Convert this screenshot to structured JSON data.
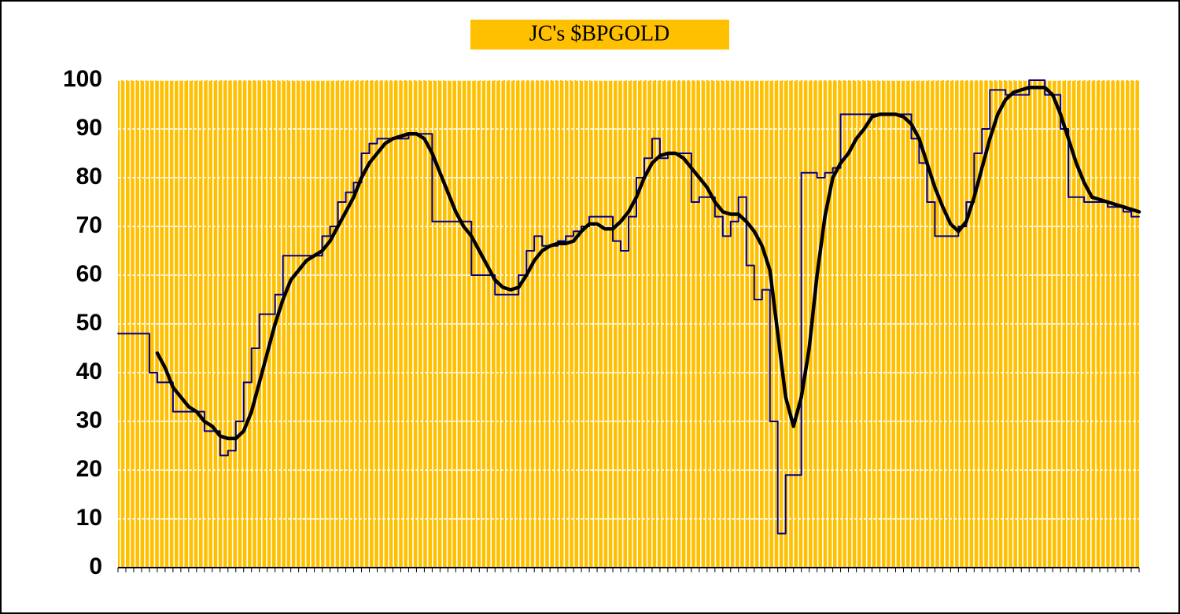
{
  "chart_data": {
    "type": "line",
    "title": "JC's $BPGOLD",
    "categories": [
      null,
      null,
      null,
      null,
      null,
      null,
      null,
      null,
      null,
      null,
      null,
      null,
      null,
      null,
      null,
      null,
      null,
      null,
      null,
      null,
      null,
      null,
      null,
      null,
      null,
      null,
      null,
      null,
      null,
      null,
      null,
      null,
      null,
      null,
      null,
      null,
      null,
      null,
      null,
      null,
      null,
      null,
      null,
      null,
      null,
      null,
      null,
      null,
      null,
      null,
      null,
      null,
      null,
      null,
      null,
      null,
      null,
      null,
      null,
      null,
      null,
      null,
      null,
      null,
      null,
      null,
      null,
      null,
      null,
      null,
      null,
      null,
      null,
      null,
      null,
      null,
      null,
      null,
      null,
      null,
      null,
      null,
      null,
      null,
      null,
      null,
      null,
      null,
      null,
      null,
      null,
      null,
      null,
      null,
      null,
      null,
      null,
      null,
      null,
      null,
      null,
      null,
      null,
      null,
      null,
      null,
      null,
      null,
      null,
      null,
      null,
      null,
      null,
      null,
      null,
      null,
      null,
      null,
      null,
      null,
      null,
      null,
      null,
      null,
      null,
      null,
      null,
      null,
      null,
      null,
      null
    ],
    "series": [
      {
        "color": "#00008b",
        "step": true,
        "values": [
          48,
          48,
          48,
          48,
          40,
          38,
          38,
          32,
          32,
          32,
          32,
          28,
          28,
          23,
          24,
          30,
          38,
          45,
          52,
          52,
          56,
          64,
          64,
          64,
          64,
          64,
          68,
          70,
          75,
          77,
          79,
          85,
          87,
          88,
          88,
          88,
          88,
          89,
          89,
          89,
          71,
          71,
          71,
          71,
          71,
          60,
          60,
          60,
          56,
          56,
          56,
          60,
          65,
          68,
          66,
          66,
          67,
          68,
          69,
          70,
          72,
          72,
          72,
          67,
          65,
          72,
          80,
          84,
          88,
          84,
          85,
          85,
          85,
          75,
          76,
          76,
          72,
          68,
          71,
          76,
          62,
          55,
          57,
          30,
          7,
          19,
          19,
          81,
          81,
          80,
          81,
          82,
          93,
          93,
          93,
          93,
          93,
          93,
          93,
          93,
          93,
          88,
          83,
          75,
          68,
          68,
          68,
          70,
          75,
          85,
          90,
          98,
          98,
          97,
          97,
          97,
          100,
          100,
          97,
          97,
          90,
          76,
          76,
          75,
          75,
          75,
          74,
          74,
          73,
          72,
          72
        ]
      },
      {
        "color": "#000000",
        "values": [
          null,
          null,
          null,
          null,
          null,
          44,
          41,
          37,
          35,
          33,
          32,
          30,
          29,
          27,
          26.5,
          26.5,
          28,
          32,
          38,
          44,
          50,
          55,
          59,
          61,
          63,
          64,
          65,
          67,
          70,
          73,
          76,
          80,
          83,
          85,
          87,
          88,
          88.5,
          89,
          89,
          88,
          85,
          81,
          77,
          73,
          70,
          68,
          65,
          62,
          59,
          57.5,
          57,
          57.5,
          60,
          63,
          65,
          66,
          66.5,
          66.5,
          67,
          69,
          70.5,
          70.5,
          69.5,
          69.5,
          71,
          73,
          76,
          80,
          83,
          84.5,
          85,
          85,
          84,
          82,
          80,
          78,
          75,
          73,
          72.5,
          72.5,
          71,
          69,
          66,
          61,
          48,
          35,
          29,
          35,
          45,
          60,
          72,
          80,
          83,
          85,
          88,
          90,
          92.5,
          93,
          93,
          93,
          92.5,
          91,
          88,
          83,
          78,
          74,
          70.5,
          69,
          71,
          76,
          82,
          88,
          93,
          96,
          97.5,
          98,
          98.5,
          98.5,
          98.5,
          97,
          93,
          88,
          83,
          79,
          76,
          75.5,
          75,
          74.5,
          74,
          73.5,
          73
        ]
      }
    ],
    "ylim": [
      0,
      100
    ],
    "yticks": [
      0,
      10,
      20,
      30,
      40,
      50,
      60,
      70,
      80,
      90,
      100
    ],
    "grid": true,
    "background": "#ffc000"
  }
}
